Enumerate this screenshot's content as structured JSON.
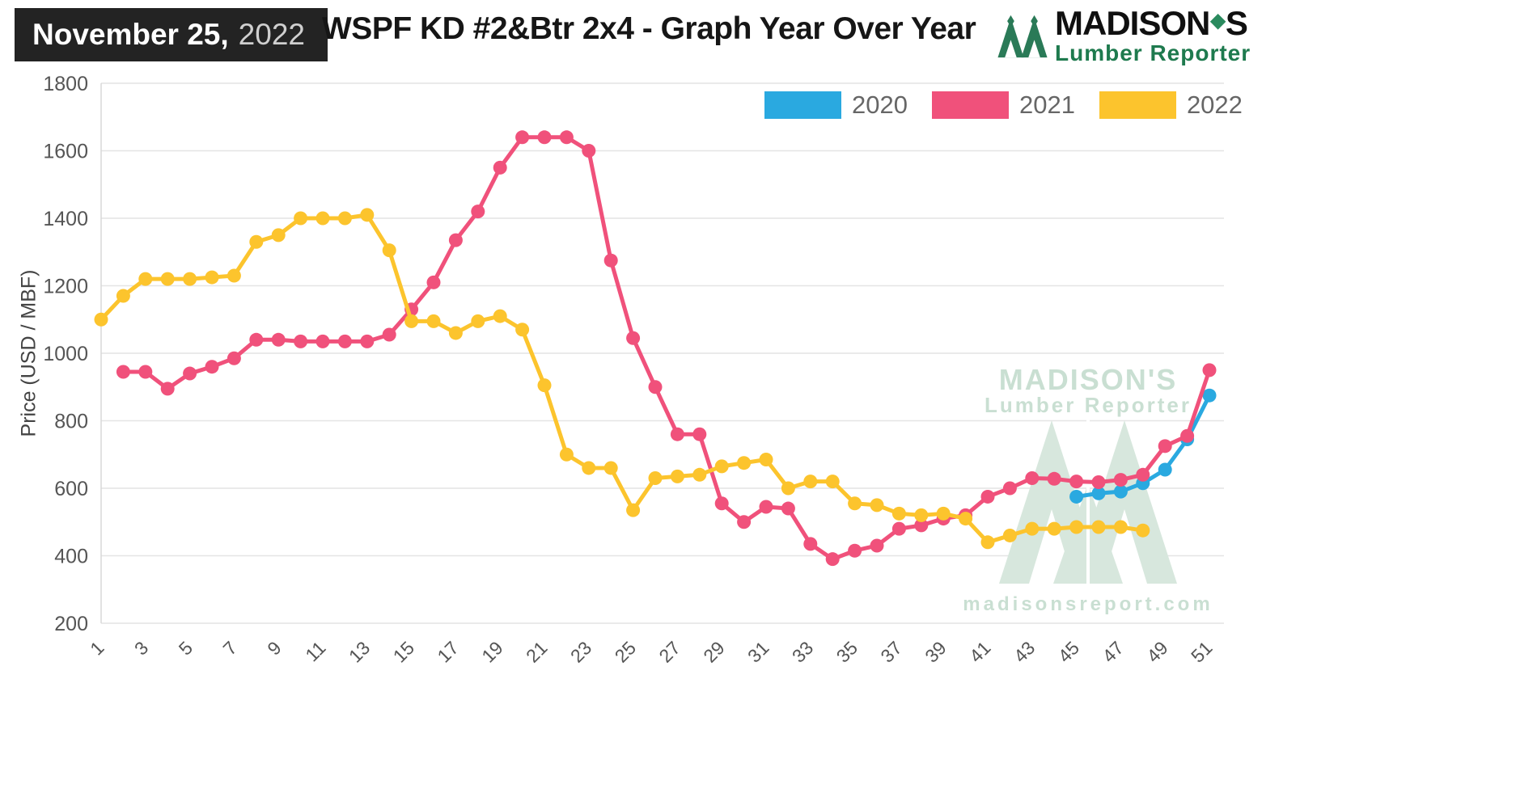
{
  "header": {
    "date_bold": "November 25,",
    "date_year": "2022",
    "title": "WSPF KD #2&Btr 2x4 - Graph Year Over Year",
    "logo": {
      "name_pre": "MADISON",
      "name_mark": "◆",
      "name_post": "S",
      "subtitle": "Lumber Reporter"
    }
  },
  "watermark": {
    "line1": "MADISON'S",
    "line2": "Lumber Reporter",
    "url": "madisonsreport.com",
    "color": "#c9dfd2",
    "shape_color": "#d7e7dd"
  },
  "chart_data": {
    "type": "line",
    "title": "WSPF KD #2&Btr 2x4 - Graph Year Over Year",
    "xlabel": "",
    "ylabel": "Price (USD / MBF)",
    "ylim": [
      200,
      1800
    ],
    "ytick_step": 200,
    "xlim": [
      1,
      51
    ],
    "xticks": [
      1,
      3,
      5,
      7,
      9,
      11,
      13,
      15,
      17,
      19,
      21,
      23,
      25,
      27,
      29,
      31,
      33,
      35,
      37,
      39,
      41,
      43,
      45,
      47,
      49,
      51
    ],
    "grid": "horizontal",
    "legend_position": "top-right",
    "series": [
      {
        "name": "2020",
        "color": "#2AA9E0",
        "x": [
          45,
          46,
          47,
          48,
          49,
          50,
          51
        ],
        "values": [
          575,
          585,
          590,
          615,
          655,
          745,
          875
        ]
      },
      {
        "name": "2021",
        "color": "#F0517B",
        "x": [
          2,
          3,
          4,
          5,
          6,
          7,
          8,
          9,
          10,
          11,
          12,
          13,
          14,
          15,
          16,
          17,
          18,
          19,
          20,
          21,
          22,
          23,
          24,
          25,
          26,
          27,
          28,
          29,
          30,
          31,
          32,
          33,
          34,
          35,
          36,
          37,
          38,
          39,
          40,
          41,
          42,
          43,
          44,
          45,
          46,
          47,
          48,
          49,
          50,
          51
        ],
        "values": [
          945,
          945,
          895,
          940,
          960,
          985,
          1040,
          1040,
          1035,
          1035,
          1035,
          1035,
          1055,
          1130,
          1210,
          1335,
          1420,
          1550,
          1640,
          1640,
          1640,
          1600,
          1275,
          1045,
          900,
          760,
          760,
          555,
          500,
          545,
          540,
          435,
          390,
          415,
          430,
          480,
          490,
          510,
          520,
          575,
          600,
          630,
          628,
          620,
          618,
          625,
          640,
          725,
          755,
          950
        ]
      },
      {
        "name": "2022",
        "color": "#FCC42D",
        "x": [
          1,
          2,
          3,
          4,
          5,
          6,
          7,
          8,
          9,
          10,
          11,
          12,
          13,
          14,
          15,
          16,
          17,
          18,
          19,
          20,
          21,
          22,
          23,
          24,
          25,
          26,
          27,
          28,
          29,
          30,
          31,
          32,
          33,
          34,
          35,
          36,
          37,
          38,
          39,
          40,
          41,
          42,
          43,
          44,
          45,
          46,
          47,
          48
        ],
        "values": [
          1100,
          1170,
          1220,
          1220,
          1220,
          1225,
          1230,
          1330,
          1350,
          1400,
          1400,
          1400,
          1410,
          1305,
          1095,
          1095,
          1060,
          1095,
          1110,
          1070,
          905,
          700,
          660,
          660,
          535,
          630,
          635,
          640,
          665,
          675,
          685,
          600,
          620,
          620,
          555,
          550,
          525,
          520,
          525,
          510,
          440,
          460,
          480,
          480,
          485,
          485,
          485,
          475
        ]
      }
    ]
  }
}
